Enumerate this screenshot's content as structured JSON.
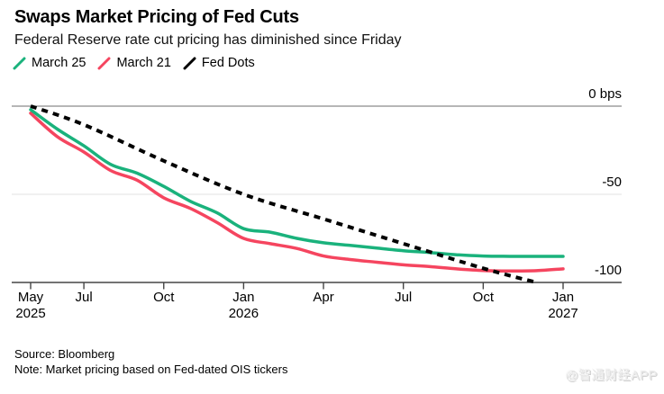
{
  "header": {
    "title": "Swaps Market Pricing of Fed Cuts",
    "subtitle": "Federal Reserve rate cut pricing has diminished since Friday"
  },
  "legend": {
    "items": [
      {
        "label": "March 25",
        "color": "#1ab27c"
      },
      {
        "label": "March 21",
        "color": "#f5455f"
      },
      {
        "label": "Fed Dots",
        "color": "#000000"
      }
    ]
  },
  "chart_data": {
    "type": "line",
    "title": "Swaps Market Pricing of Fed Cuts",
    "subtitle": "Federal Reserve rate cut pricing has diminished since Friday",
    "ylabel": "bps",
    "xlabel": "",
    "x_unit": "months since May 2025",
    "x_range": [
      0,
      20
    ],
    "ylim": [
      -105,
      0
    ],
    "grid": "horizontal",
    "legend_position": "top-left",
    "legend_entries": [
      "March 25",
      "March 21",
      "Fed Dots"
    ],
    "y_gridlines": [
      {
        "bps": 0,
        "label": "0 bps",
        "emphasis": "zero"
      },
      {
        "bps": -50,
        "label": "-50",
        "emphasis": "light"
      },
      {
        "bps": -100,
        "label": "-100",
        "emphasis": "axis"
      }
    ],
    "x_ticks": [
      {
        "month": 0,
        "label": "May",
        "sublabel": "2025"
      },
      {
        "month": 2,
        "label": "Jul",
        "sublabel": ""
      },
      {
        "month": 5,
        "label": "Oct",
        "sublabel": ""
      },
      {
        "month": 8,
        "label": "Jan",
        "sublabel": "2026"
      },
      {
        "month": 11,
        "label": "Apr",
        "sublabel": ""
      },
      {
        "month": 14,
        "label": "Jul",
        "sublabel": ""
      },
      {
        "month": 17,
        "label": "Oct",
        "sublabel": ""
      },
      {
        "month": 20,
        "label": "Jan",
        "sublabel": "2027"
      }
    ],
    "series": [
      {
        "name": "March 21",
        "color": "#f5455f",
        "style": "solid",
        "points": [
          [
            0,
            -4
          ],
          [
            1,
            -17.3
          ],
          [
            2,
            -26
          ],
          [
            3,
            -36.5
          ],
          [
            4,
            -42
          ],
          [
            5,
            -52
          ],
          [
            6,
            -58
          ],
          [
            7,
            -66
          ],
          [
            8,
            -75
          ],
          [
            9,
            -78
          ],
          [
            10,
            -80.7
          ],
          [
            11,
            -85
          ],
          [
            12,
            -87
          ],
          [
            13,
            -88.5
          ],
          [
            14,
            -90
          ],
          [
            15,
            -91
          ],
          [
            16,
            -92.3
          ],
          [
            17,
            -93.2
          ],
          [
            18,
            -93.5
          ],
          [
            19,
            -93.3
          ],
          [
            20,
            -92.3
          ]
        ]
      },
      {
        "name": "March 25",
        "color": "#1ab27c",
        "style": "solid",
        "points": [
          [
            0,
            -2
          ],
          [
            1,
            -13
          ],
          [
            2,
            -22.5
          ],
          [
            3,
            -33
          ],
          [
            4,
            -38
          ],
          [
            5,
            -45.5
          ],
          [
            6,
            -54
          ],
          [
            7,
            -60.5
          ],
          [
            8,
            -69.5
          ],
          [
            9,
            -71.5
          ],
          [
            10,
            -75
          ],
          [
            11,
            -77.5
          ],
          [
            12,
            -79
          ],
          [
            13,
            -80.5
          ],
          [
            14,
            -82
          ],
          [
            15,
            -83
          ],
          [
            16,
            -84.3
          ],
          [
            17,
            -85
          ],
          [
            18,
            -85.2
          ],
          [
            19,
            -85.2
          ],
          [
            20,
            -85.2
          ]
        ]
      },
      {
        "name": "Fed Dots",
        "color": "#000000",
        "style": "dashed",
        "points": [
          [
            0,
            0
          ],
          [
            2,
            -10.5
          ],
          [
            5,
            -31
          ],
          [
            8,
            -50
          ],
          [
            11,
            -64
          ],
          [
            14,
            -78
          ],
          [
            17,
            -92
          ],
          [
            19,
            -100
          ]
        ]
      }
    ]
  },
  "footer": {
    "source": "Source: Bloomberg",
    "note": "Note: Market pricing based on Fed-dated OIS tickers"
  },
  "watermark": "@智通财经APP"
}
